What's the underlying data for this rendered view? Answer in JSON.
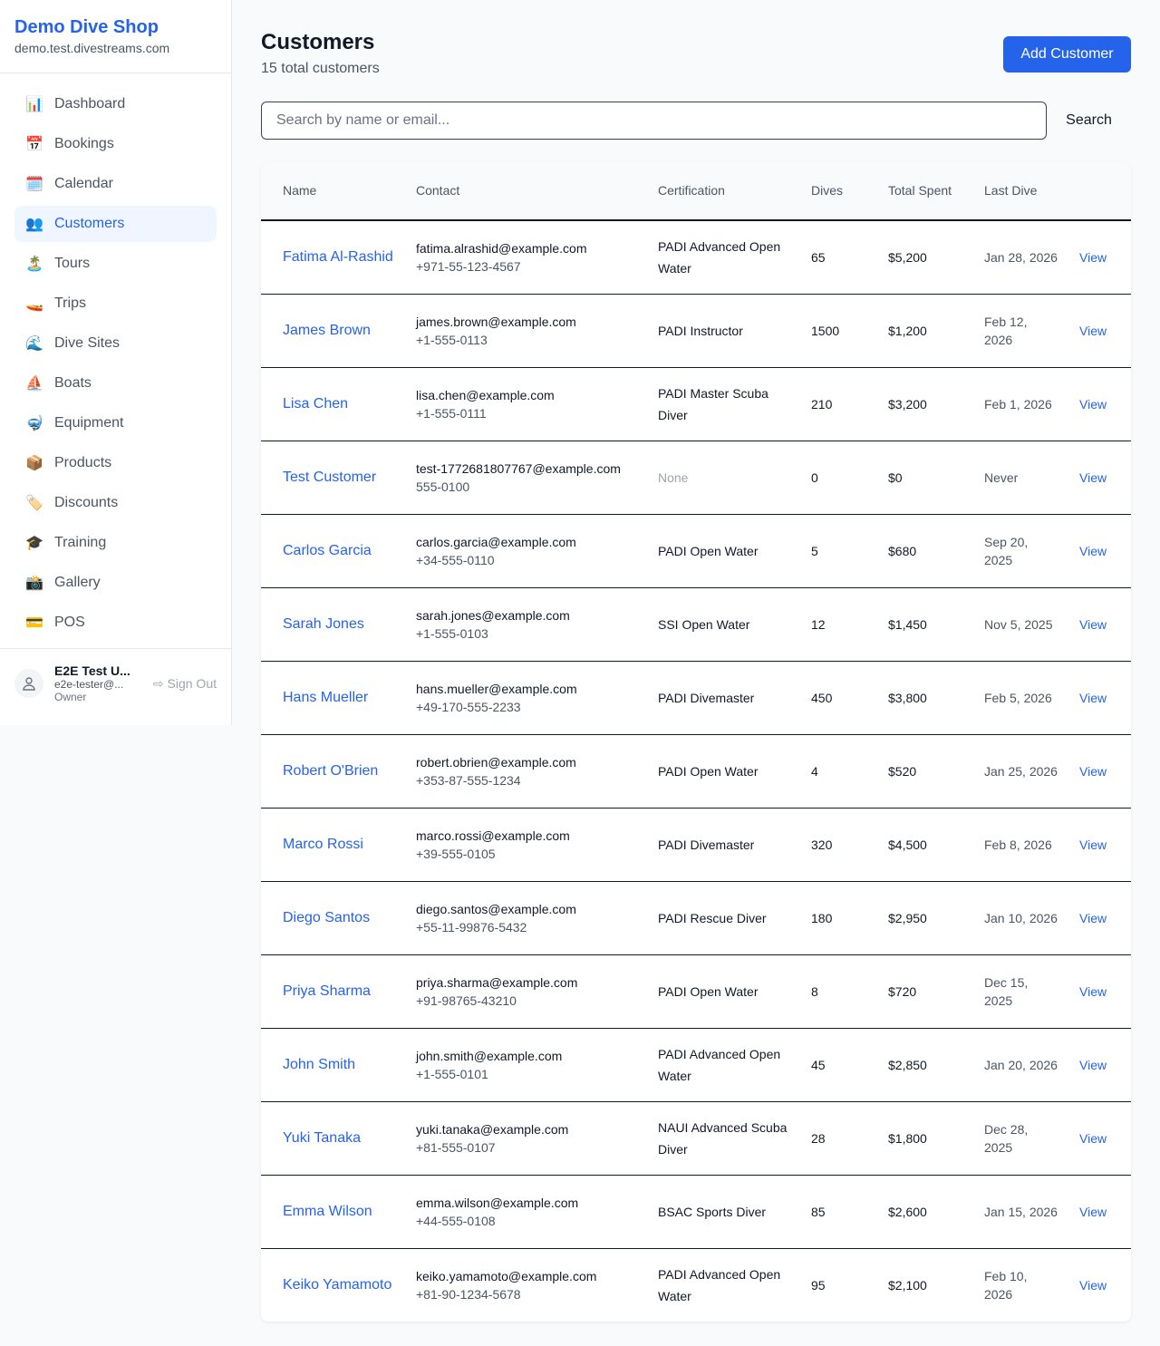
{
  "sidebar": {
    "shop_name": "Demo Dive Shop",
    "domain": "demo.test.divestreams.com",
    "items": [
      {
        "label": "Dashboard",
        "icon": "📊"
      },
      {
        "label": "Bookings",
        "icon": "📅"
      },
      {
        "label": "Calendar",
        "icon": "🗓️"
      },
      {
        "label": "Customers",
        "icon": "👥",
        "active": true
      },
      {
        "label": "Tours",
        "icon": "🏝️"
      },
      {
        "label": "Trips",
        "icon": "🚤"
      },
      {
        "label": "Dive Sites",
        "icon": "🌊"
      },
      {
        "label": "Boats",
        "icon": "⛵"
      },
      {
        "label": "Equipment",
        "icon": "🤿"
      },
      {
        "label": "Products",
        "icon": "📦"
      },
      {
        "label": "Discounts",
        "icon": "🏷️"
      },
      {
        "label": "Training",
        "icon": "🎓"
      },
      {
        "label": "Gallery",
        "icon": "📸"
      },
      {
        "label": "POS",
        "icon": "💳"
      }
    ],
    "user": {
      "name": "E2E Test U...",
      "email": "e2e-tester@...",
      "role": "Owner",
      "sign_out": "Sign Out"
    }
  },
  "header": {
    "title": "Customers",
    "subtitle": "15 total customers",
    "add_button": "Add Customer"
  },
  "search": {
    "placeholder": "Search by name or email...",
    "value": "",
    "button": "Search"
  },
  "table": {
    "columns": [
      "Name",
      "Contact",
      "Certification",
      "Dives",
      "Total Spent",
      "Last Dive",
      ""
    ],
    "rows": [
      {
        "name": "Fatima Al-Rashid",
        "email": "fatima.alrashid@example.com",
        "phone": "+971-55-123-4567",
        "cert": "PADI Advanced Open Water",
        "dives": "65",
        "spent": "$5,200",
        "last": "Jan 28, 2026",
        "action": "View"
      },
      {
        "name": "James Brown",
        "email": "james.brown@example.com",
        "phone": "+1-555-0113",
        "cert": "PADI Instructor",
        "dives": "1500",
        "spent": "$1,200",
        "last": "Feb 12, 2026",
        "action": "View"
      },
      {
        "name": "Lisa Chen",
        "email": "lisa.chen@example.com",
        "phone": "+1-555-0111",
        "cert": "PADI Master Scuba Diver",
        "dives": "210",
        "spent": "$3,200",
        "last": "Feb 1, 2026",
        "action": "View"
      },
      {
        "name": "Test Customer",
        "email": "test-1772681807767@example.com",
        "phone": "555-0100",
        "cert": "None",
        "dives": "0",
        "spent": "$0",
        "last": "Never",
        "action": "View"
      },
      {
        "name": "Carlos Garcia",
        "email": "carlos.garcia@example.com",
        "phone": "+34-555-0110",
        "cert": "PADI Open Water",
        "dives": "5",
        "spent": "$680",
        "last": "Sep 20, 2025",
        "action": "View"
      },
      {
        "name": "Sarah Jones",
        "email": "sarah.jones@example.com",
        "phone": "+1-555-0103",
        "cert": "SSI Open Water",
        "dives": "12",
        "spent": "$1,450",
        "last": "Nov 5, 2025",
        "action": "View"
      },
      {
        "name": "Hans Mueller",
        "email": "hans.mueller@example.com",
        "phone": "+49-170-555-2233",
        "cert": "PADI Divemaster",
        "dives": "450",
        "spent": "$3,800",
        "last": "Feb 5, 2026",
        "action": "View"
      },
      {
        "name": "Robert O'Brien",
        "email": "robert.obrien@example.com",
        "phone": "+353-87-555-1234",
        "cert": "PADI Open Water",
        "dives": "4",
        "spent": "$520",
        "last": "Jan 25, 2026",
        "action": "View"
      },
      {
        "name": "Marco Rossi",
        "email": "marco.rossi@example.com",
        "phone": "+39-555-0105",
        "cert": "PADI Divemaster",
        "dives": "320",
        "spent": "$4,500",
        "last": "Feb 8, 2026",
        "action": "View"
      },
      {
        "name": "Diego Santos",
        "email": "diego.santos@example.com",
        "phone": "+55-11-99876-5432",
        "cert": "PADI Rescue Diver",
        "dives": "180",
        "spent": "$2,950",
        "last": "Jan 10, 2026",
        "action": "View"
      },
      {
        "name": "Priya Sharma",
        "email": "priya.sharma@example.com",
        "phone": "+91-98765-43210",
        "cert": "PADI Open Water",
        "dives": "8",
        "spent": "$720",
        "last": "Dec 15, 2025",
        "action": "View"
      },
      {
        "name": "John Smith",
        "email": "john.smith@example.com",
        "phone": "+1-555-0101",
        "cert": "PADI Advanced Open Water",
        "dives": "45",
        "spent": "$2,850",
        "last": "Jan 20, 2026",
        "action": "View"
      },
      {
        "name": "Yuki Tanaka",
        "email": "yuki.tanaka@example.com",
        "phone": "+81-555-0107",
        "cert": "NAUI Advanced Scuba Diver",
        "dives": "28",
        "spent": "$1,800",
        "last": "Dec 28, 2025",
        "action": "View"
      },
      {
        "name": "Emma Wilson",
        "email": "emma.wilson@example.com",
        "phone": "+44-555-0108",
        "cert": "BSAC Sports Diver",
        "dives": "85",
        "spent": "$2,600",
        "last": "Jan 15, 2026",
        "action": "View"
      },
      {
        "name": "Keiko Yamamoto",
        "email": "keiko.yamamoto@example.com",
        "phone": "+81-90-1234-5678",
        "cert": "PADI Advanced Open Water",
        "dives": "95",
        "spent": "$2,100",
        "last": "Feb 10, 2026",
        "action": "View"
      }
    ]
  }
}
